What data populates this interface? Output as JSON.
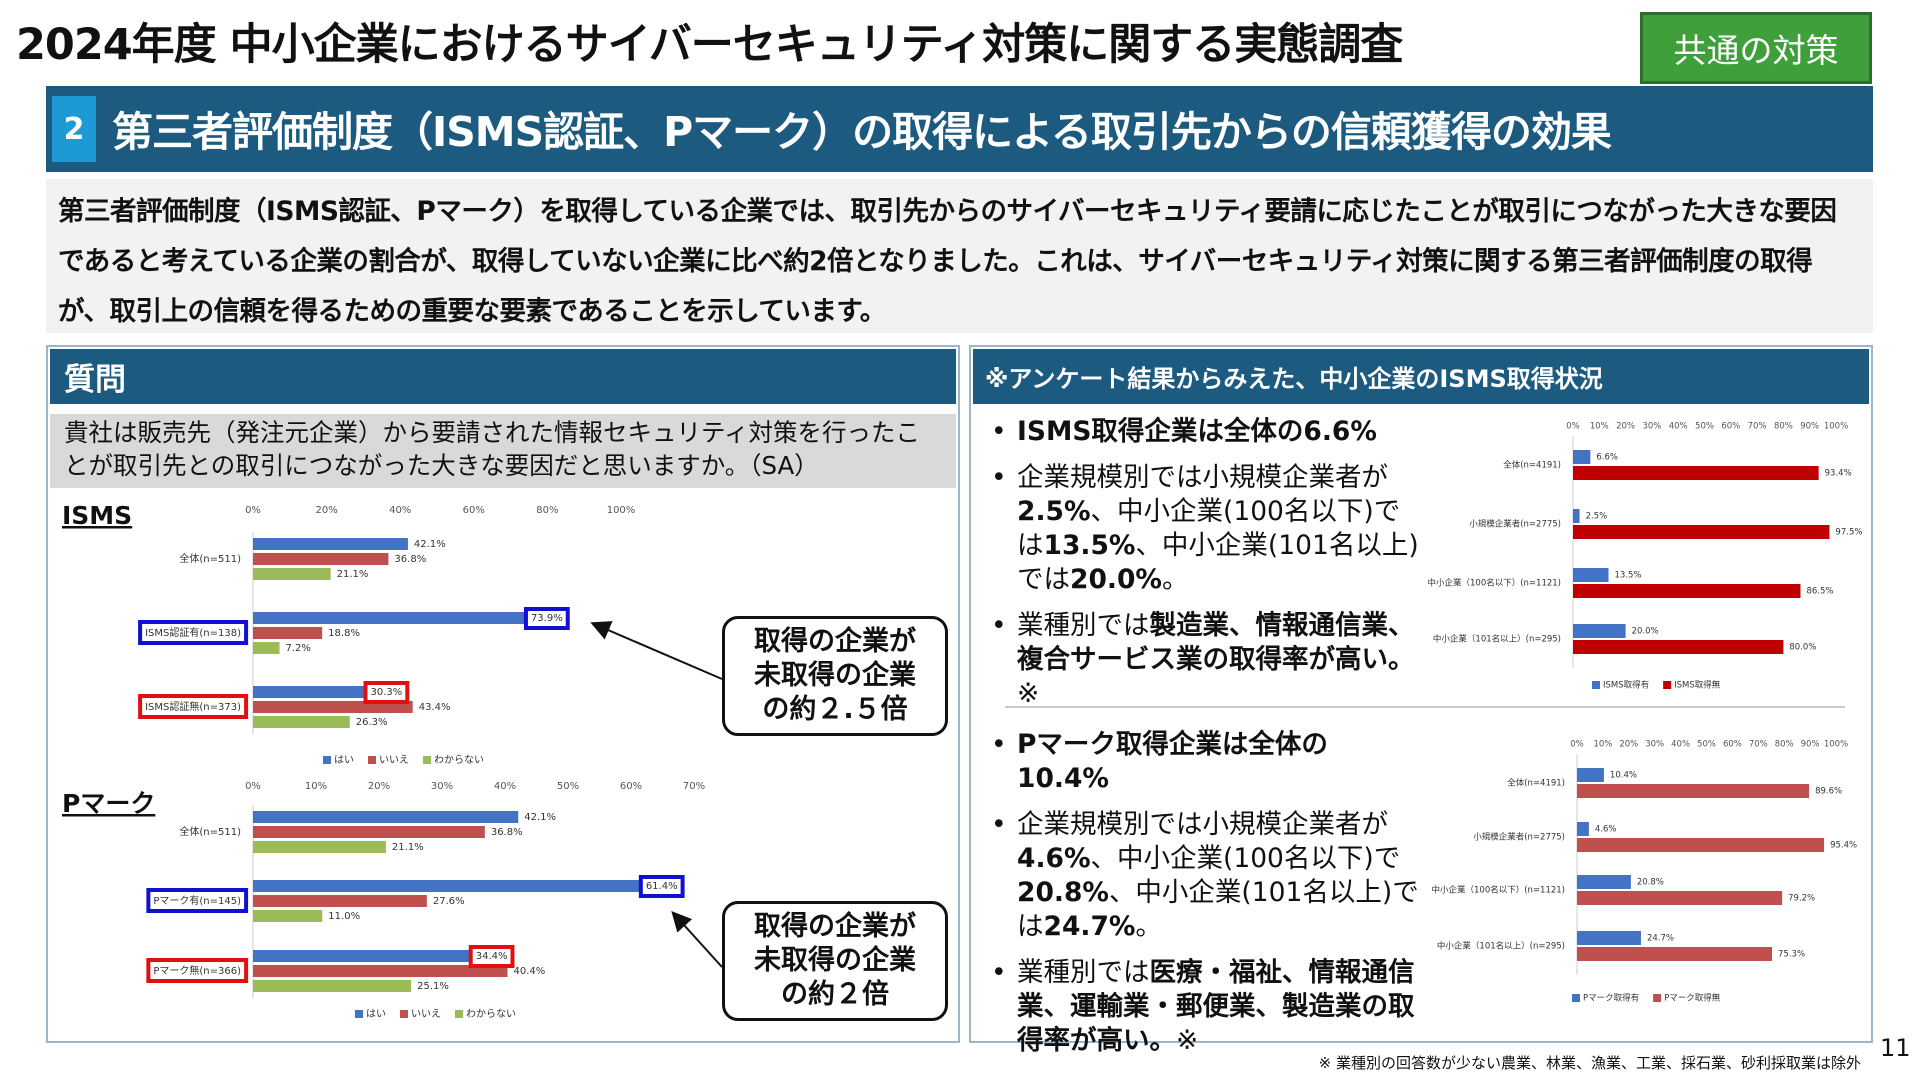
{
  "header": {
    "title": "2024年度 中小企業におけるサイバーセキュリティ対策に関する実態調査",
    "tag": "共通の対策"
  },
  "section": {
    "number": "2",
    "title": "第三者評価制度（ISMS認証、Pマーク）の取得による取引先からの信頼獲得の効果"
  },
  "summary": "第三者評価制度（ISMS認証、Pマーク）を取得している企業では、取引先からのサイバーセキュリティ要請に応じたことが取引につながった大きな要因であると考えている企業の割合が、取得していない企業に比べ約2倍となりました。これは、サイバーセキュリティ対策に関する第三者評価制度の取得が、取引上の信頼を得るための重要な要素であることを示しています。",
  "left_panel": {
    "heading": "質問",
    "question": "貴社は販売先（発注元企業）から要請された情報セキュリティ対策を行ったことが取引先との取引につながった大きな要因だと思いますか。（SA）",
    "charts": [
      {
        "type": "bar",
        "title": "ISMS",
        "categories": [
          "全体(n=511)",
          "ISMS認証有(n=138)",
          "ISMS認証無(n=373)"
        ],
        "series": [
          {
            "name": "はい",
            "color": "#4472c4",
            "values": [
              42.1,
              73.9,
              30.3
            ],
            "value_labels": [
              "42.1%",
              "73.9%",
              "30.3%"
            ]
          },
          {
            "name": "いいえ",
            "color": "#c0504d",
            "values": [
              36.8,
              18.8,
              43.4
            ],
            "value_labels": [
              "36.8%",
              "18.8%",
              "43.4%"
            ]
          },
          {
            "name": "わからない",
            "color": "#9bbb59",
            "values": [
              21.1,
              7.2,
              26.3
            ],
            "value_labels": [
              "21.1%",
              "7.2%",
              "26.3%"
            ]
          }
        ],
        "xlim": [
          0,
          100
        ],
        "xticks": [
          {
            "value": 0,
            "label": "0%"
          },
          {
            "value": 20,
            "label": "20%"
          },
          {
            "value": 40,
            "label": "40%"
          },
          {
            "value": 60,
            "label": "60%"
          },
          {
            "value": 80,
            "label": "80%"
          },
          {
            "value": 100,
            "label": "100%"
          }
        ]
      },
      {
        "type": "bar",
        "title": "Pマーク",
        "categories": [
          "全体(n=511)",
          "Pマーク有(n=145)",
          "Pマーク無(n=366)"
        ],
        "series": [
          {
            "name": "はい",
            "color": "#4472c4",
            "values": [
              42.1,
              61.4,
              34.4
            ],
            "value_labels": [
              "42.1%",
              "61.4%",
              "34.4%"
            ]
          },
          {
            "name": "いいえ",
            "color": "#c0504d",
            "values": [
              36.8,
              27.6,
              40.4
            ],
            "value_labels": [
              "36.8%",
              "27.6%",
              "40.4%"
            ]
          },
          {
            "name": "わからない",
            "color": "#9bbb59",
            "values": [
              21.1,
              11.0,
              25.1
            ],
            "value_labels": [
              "21.1%",
              "11.0%",
              "25.1%"
            ]
          }
        ],
        "xlim": [
          0,
          70
        ],
        "xticks": [
          {
            "value": 0,
            "label": "0%"
          },
          {
            "value": 10,
            "label": "10%"
          },
          {
            "value": 20,
            "label": "20%"
          },
          {
            "value": 30,
            "label": "30%"
          },
          {
            "value": 40,
            "label": "40%"
          },
          {
            "value": 50,
            "label": "50%"
          },
          {
            "value": 60,
            "label": "60%"
          },
          {
            "value": 70,
            "label": "70%"
          }
        ]
      }
    ],
    "callouts": [
      [
        "取得の企業が",
        "未取得の企業",
        "の約２.５倍"
      ],
      [
        "取得の企業が",
        "未取得の企業",
        "の約２倍"
      ]
    ]
  },
  "right_panel": {
    "heading": "※アンケート結果からみえた、中小企業のISMS取得状況",
    "blocks": [
      {
        "bullets": [
          [
            {
              "text": "ISMS取得企業は全体の6.6%",
              "bold": true
            }
          ],
          [
            {
              "text": "企業規模別では小規模企業者が"
            },
            {
              "text": "2.5%",
              "bold": true
            },
            {
              "text": "、中小企業(100名以下)では"
            },
            {
              "text": "13.5%",
              "bold": true
            },
            {
              "text": "、中小企業(101名以上)では"
            },
            {
              "text": "20.0%",
              "bold": true
            },
            {
              "text": "。"
            }
          ],
          [
            {
              "text": "業種別では"
            },
            {
              "text": "製造業、情報通信業、複合サービス業の取得率が高い。",
              "bold": true
            },
            {
              "text": "※"
            }
          ]
        ],
        "chart": {
          "type": "bar",
          "categories": [
            "全体(n=4191)",
            "小規模企業者(n=2775)",
            "中小企業（100名以下）(n=1121)",
            "中小企業（101名以上）(n=295)"
          ],
          "series": [
            {
              "name": "ISMS取得有",
              "color": "#4472c4",
              "values": [
                6.6,
                2.5,
                13.5,
                20.0
              ],
              "value_labels": [
                "6.6%",
                "2.5%",
                "13.5%",
                "20.0%"
              ]
            },
            {
              "name": "ISMS取得無",
              "color": "#c00000",
              "values": [
                93.4,
                97.5,
                86.5,
                80.0
              ],
              "value_labels": [
                "93.4%",
                "97.5%",
                "86.5%",
                "80.0%"
              ]
            }
          ],
          "xlim": [
            0,
            100
          ],
          "xticks": [
            {
              "value": 0,
              "label": "0%"
            },
            {
              "value": 10,
              "label": "10%"
            },
            {
              "value": 20,
              "label": "20%"
            },
            {
              "value": 30,
              "label": "30%"
            },
            {
              "value": 40,
              "label": "40%"
            },
            {
              "value": 50,
              "label": "50%"
            },
            {
              "value": 60,
              "label": "60%"
            },
            {
              "value": 70,
              "label": "70%"
            },
            {
              "value": 80,
              "label": "80%"
            },
            {
              "value": 90,
              "label": "90%"
            },
            {
              "value": 100,
              "label": "100%"
            }
          ]
        }
      },
      {
        "bullets": [
          [
            {
              "text": "Pマーク取得企業は全体の10.4%",
              "bold": true
            }
          ],
          [
            {
              "text": "企業規模別では小規模企業者が"
            },
            {
              "text": "4.6%",
              "bold": true
            },
            {
              "text": "、中小企業(100名以下)で"
            },
            {
              "text": "20.8%",
              "bold": true
            },
            {
              "text": "、中小企業(101名以上)では"
            },
            {
              "text": "24.7%",
              "bold": true
            },
            {
              "text": "。"
            }
          ],
          [
            {
              "text": "業種別では"
            },
            {
              "text": "医療・福祉、情報通信業、運輸業・郵便業、製造業の取得率が高い。",
              "bold": true
            },
            {
              "text": "※"
            }
          ]
        ],
        "chart": {
          "type": "bar",
          "categories": [
            "全体(n=4191)",
            "小規模企業者(n=2775)",
            "中小企業（100名以下）(n=1121)",
            "中小企業（101名以上）(n=295)"
          ],
          "series": [
            {
              "name": "Pマーク取得有",
              "color": "#4472c4",
              "values": [
                10.4,
                4.6,
                20.8,
                24.7
              ],
              "value_labels": [
                "10.4%",
                "4.6%",
                "20.8%",
                "24.7%"
              ]
            },
            {
              "name": "Pマーク取得無",
              "color": "#c0504d",
              "values": [
                89.6,
                95.4,
                79.2,
                75.3
              ],
              "value_labels": [
                "89.6%",
                "95.4%",
                "79.2%",
                "75.3%"
              ]
            }
          ],
          "xlim": [
            0,
            100
          ],
          "xticks": [
            {
              "value": 0,
              "label": "0%"
            },
            {
              "value": 10,
              "label": "10%"
            },
            {
              "value": 20,
              "label": "20%"
            },
            {
              "value": 30,
              "label": "30%"
            },
            {
              "value": 40,
              "label": "40%"
            },
            {
              "value": 50,
              "label": "50%"
            },
            {
              "value": 60,
              "label": "60%"
            },
            {
              "value": 70,
              "label": "70%"
            },
            {
              "value": 80,
              "label": "80%"
            },
            {
              "value": 90,
              "label": "90%"
            },
            {
              "value": 100,
              "label": "100%"
            }
          ]
        }
      }
    ]
  },
  "footnote": "※ 業種別の回答数が少ない農業、林業、漁業、工業、採石業、砂利採取業は除外",
  "page_number": "11"
}
